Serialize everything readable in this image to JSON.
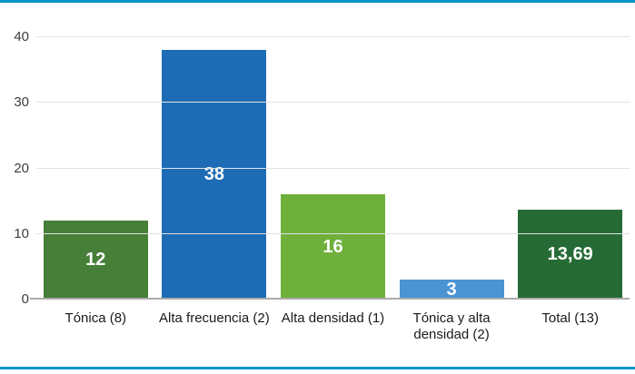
{
  "page": {
    "background": "#ffffff",
    "accent_rule_color": "#0b95c9"
  },
  "chart_data": {
    "type": "bar",
    "categories": [
      "Tónica (8)",
      "Alta frecuencia (2)",
      "Alta densidad (1)",
      "Tónica y alta densidad (2)",
      "Total (13)"
    ],
    "values": [
      12,
      38,
      16,
      3,
      13.69
    ],
    "value_labels": [
      "12",
      "38",
      "16",
      "3",
      "13,69"
    ],
    "bar_colors": [
      "#477e38",
      "#1d6cb5",
      "#6fb03c",
      "#4a94d4",
      "#266b35"
    ],
    "value_label_color": "#ffffff",
    "title": "",
    "xlabel": "",
    "ylabel": "",
    "ylim": [
      0,
      40
    ],
    "yticks": [
      0,
      10,
      20,
      30,
      40
    ],
    "grid": true,
    "legend": "none"
  }
}
